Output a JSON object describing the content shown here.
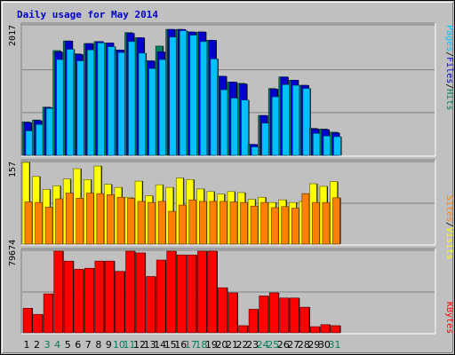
{
  "title": "Daily usage for May 2014",
  "colors": {
    "background": "#c0c0c0",
    "plot": "#c0c0c0",
    "title": "#0000cc",
    "grid": "#808080",
    "hits": "#00805c",
    "files": "#0000cc",
    "pages": "#00c0ff",
    "visits": "#ffff00",
    "sites": "#ff8000",
    "kbytes": "#ff0000",
    "weekend_day": "#00805c",
    "weekday_day": "#000000"
  },
  "chart_data": [
    {
      "type": "bar",
      "panel": "top",
      "scale_label": "2017",
      "ylim": [
        0,
        2017
      ],
      "right_labels": [
        {
          "text": "Hits",
          "color": "#00805c"
        },
        {
          "text": "Files",
          "color": "#0000cc"
        },
        {
          "text": "Pages",
          "color": "#00c0ff"
        }
      ],
      "categories": [
        "1",
        "2",
        "3",
        "4",
        "5",
        "6",
        "7",
        "8",
        "9",
        "10",
        "11",
        "12",
        "13",
        "14",
        "15",
        "16",
        "17",
        "18",
        "19",
        "20",
        "21",
        "22",
        "23",
        "24",
        "25",
        "26",
        "27",
        "28",
        "29",
        "30",
        "31"
      ],
      "series": [
        {
          "name": "Hits",
          "values": [
            520,
            550,
            750,
            1630,
            1780,
            1580,
            1740,
            1770,
            1750,
            1640,
            1910,
            1830,
            1470,
            1700,
            1960,
            1960,
            1920,
            1920,
            1790,
            1230,
            1140,
            1120,
            170,
            620,
            1040,
            1220,
            1170,
            1090,
            420,
            410,
            360
          ]
        },
        {
          "name": "Files",
          "values": [
            510,
            540,
            745,
            1610,
            1780,
            1570,
            1740,
            1770,
            1750,
            1640,
            1900,
            1830,
            1470,
            1610,
            1960,
            1960,
            1920,
            1920,
            1790,
            1230,
            1140,
            1110,
            170,
            620,
            1030,
            1220,
            1170,
            1090,
            410,
            400,
            350
          ]
        },
        {
          "name": "Pages",
          "values": [
            380,
            480,
            730,
            1490,
            1650,
            1470,
            1640,
            1750,
            1690,
            1600,
            1770,
            1590,
            1350,
            1490,
            1840,
            1940,
            1870,
            1770,
            1500,
            1020,
            890,
            860,
            130,
            500,
            910,
            1100,
            1090,
            1040,
            340,
            300,
            290
          ]
        }
      ]
    },
    {
      "type": "bar",
      "panel": "middle",
      "scale_label": "157",
      "ylim": [
        0,
        157
      ],
      "right_labels": [
        {
          "text": "Visits",
          "color": "#ffff00"
        },
        {
          "text": "Sites",
          "color": "#ff8000"
        }
      ],
      "categories": [
        "1",
        "2",
        "3",
        "4",
        "5",
        "6",
        "7",
        "8",
        "9",
        "10",
        "11",
        "12",
        "13",
        "14",
        "15",
        "16",
        "17",
        "18",
        "19",
        "20",
        "21",
        "22",
        "23",
        "24",
        "25",
        "26",
        "27",
        "28",
        "29",
        "30",
        "31"
      ],
      "series": [
        {
          "name": "Visits",
          "values": [
            157,
            130,
            105,
            112,
            125,
            145,
            124,
            150,
            115,
            109,
            90,
            121,
            93,
            114,
            109,
            127,
            124,
            106,
            101,
            96,
            101,
            99,
            86,
            90,
            80,
            85,
            80,
            82,
            116,
            111,
            120
          ]
        },
        {
          "name": "Sites",
          "values": [
            81,
            80,
            71,
            87,
            98,
            88,
            98,
            97,
            95,
            90,
            88,
            82,
            80,
            82,
            63,
            75,
            85,
            82,
            82,
            82,
            81,
            80,
            73,
            80,
            70,
            72,
            69,
            97,
            80,
            80,
            89
          ]
        }
      ]
    },
    {
      "type": "bar",
      "panel": "bottom",
      "scale_label": "79674",
      "ylim": [
        0,
        79674
      ],
      "right_labels": [
        {
          "text": "KBytes",
          "color": "#ff0000"
        }
      ],
      "categories": [
        "1",
        "2",
        "3",
        "4",
        "5",
        "6",
        "7",
        "8",
        "9",
        "10",
        "11",
        "12",
        "13",
        "14",
        "15",
        "16",
        "17",
        "18",
        "19",
        "20",
        "21",
        "22",
        "23",
        "24",
        "25",
        "26",
        "27",
        "28",
        "29",
        "30",
        "31"
      ],
      "series": [
        {
          "name": "KBytes",
          "values": [
            24000,
            18000,
            38000,
            80000,
            70000,
            62000,
            63000,
            70000,
            70000,
            60000,
            80000,
            78000,
            55000,
            71000,
            80000,
            76000,
            76000,
            80000,
            80000,
            44000,
            39000,
            7000,
            23000,
            36000,
            39000,
            34000,
            34000,
            25000,
            6000,
            8000,
            7000
          ]
        }
      ],
      "day_labels": [
        "1",
        "2",
        "3",
        "4",
        "5",
        "6",
        "7",
        "8",
        "9",
        "10",
        "11",
        "12",
        "13",
        "14",
        "15",
        "16",
        "17",
        "18",
        "19",
        "20",
        "21",
        "22",
        "23",
        "24",
        "25",
        "26",
        "27",
        "28",
        "29",
        "30",
        "31"
      ],
      "weekend_days": [
        3,
        4,
        10,
        11,
        17,
        18,
        24,
        25,
        31
      ]
    }
  ]
}
